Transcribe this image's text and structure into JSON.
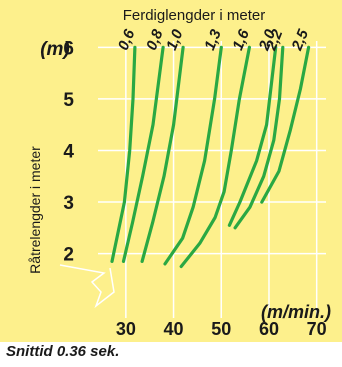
{
  "panel_color": "#fdf08c",
  "caption": "Snittid 0.36 sek.",
  "chart_data": {
    "type": "line",
    "title": "Ferdiglengder i meter",
    "xlabel": "(m/min.)",
    "ylabel": "Råtrelengder i meter",
    "y_unit": "(m)",
    "x_ticks": [
      30,
      40,
      50,
      60,
      70
    ],
    "y_ticks": [
      2,
      3,
      4,
      5,
      6
    ],
    "xlim": [
      25,
      73
    ],
    "ylim": [
      1.45,
      6.2
    ],
    "grid": true,
    "line_color": "#2aa843",
    "series": [
      {
        "name": "0,6",
        "points": [
          [
            27.1,
            1.85
          ],
          [
            29.7,
            3.0
          ],
          [
            30.8,
            4.0
          ],
          [
            31.5,
            5.0
          ],
          [
            31.9,
            6.0
          ]
        ]
      },
      {
        "name": "0,8",
        "points": [
          [
            29.5,
            1.85
          ],
          [
            31.4,
            2.6
          ],
          [
            33.5,
            3.5
          ],
          [
            35.7,
            4.5
          ],
          [
            37.8,
            6.0
          ]
        ]
      },
      {
        "name": "1,0",
        "points": [
          [
            33.4,
            1.85
          ],
          [
            35.6,
            2.6
          ],
          [
            38.0,
            3.5
          ],
          [
            40.0,
            4.5
          ],
          [
            42.0,
            6.0
          ]
        ]
      },
      {
        "name": "1,3",
        "points": [
          [
            38.2,
            1.8
          ],
          [
            41.9,
            2.3
          ],
          [
            44.1,
            2.9
          ],
          [
            46.5,
            3.8
          ],
          [
            48.6,
            5.0
          ],
          [
            50.0,
            6.0
          ]
        ]
      },
      {
        "name": "1,6",
        "points": [
          [
            41.6,
            1.75
          ],
          [
            45.5,
            2.2
          ],
          [
            48.7,
            2.7
          ],
          [
            50.6,
            3.2
          ],
          [
            52.1,
            4.0
          ],
          [
            53.8,
            5.0
          ],
          [
            55.9,
            6.0
          ]
        ]
      },
      {
        "name": "2,0",
        "points": [
          [
            51.7,
            2.55
          ],
          [
            53.9,
            3.0
          ],
          [
            57.4,
            3.8
          ],
          [
            59.5,
            4.5
          ],
          [
            61.4,
            6.0
          ]
        ]
      },
      {
        "name": "2,2",
        "points": [
          [
            52.9,
            2.5
          ],
          [
            56.0,
            2.9
          ],
          [
            58.9,
            3.5
          ],
          [
            61.0,
            4.2
          ],
          [
            62.2,
            5.0
          ],
          [
            62.9,
            6.0
          ]
        ]
      },
      {
        "name": "2,5",
        "points": [
          [
            58.5,
            3.0
          ],
          [
            62.1,
            3.6
          ],
          [
            64.5,
            4.4
          ],
          [
            66.6,
            5.2
          ],
          [
            68.3,
            6.0
          ]
        ]
      }
    ]
  }
}
